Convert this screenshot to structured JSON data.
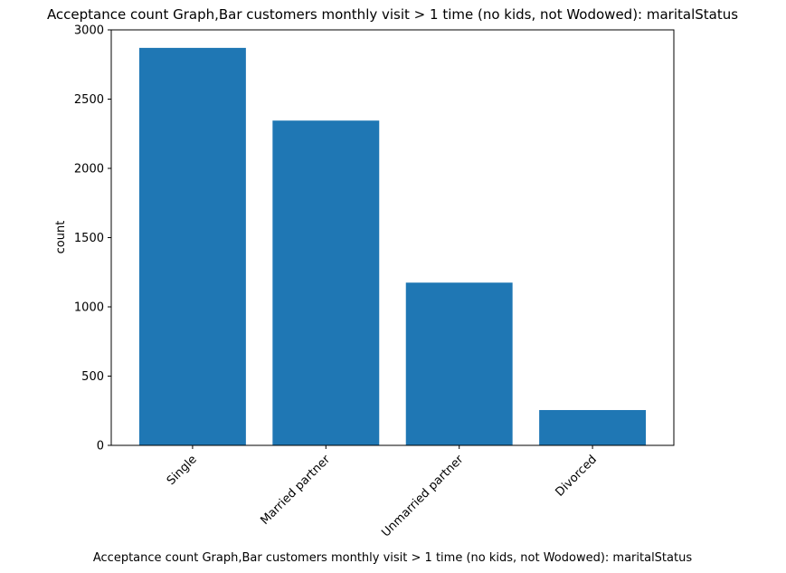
{
  "chart_data": {
    "type": "bar",
    "title": "Acceptance count Graph,Bar customers monthly visit > 1 time (no kids, not Wodowed): maritalStatus",
    "xlabel": "Acceptance count Graph,Bar customers monthly visit > 1 time (no kids, not Wodowed): maritalStatus",
    "ylabel": "count",
    "categories": [
      "Single",
      "Married partner",
      "Unmarried partner",
      "Divorced"
    ],
    "values": [
      2870,
      2345,
      1175,
      255
    ],
    "ylim": [
      0,
      3000
    ],
    "yticks": [
      0,
      500,
      1000,
      1500,
      2000,
      2500,
      3000
    ],
    "bar_color": "#1f77b4",
    "grid": false,
    "legend": "none",
    "xtick_rotation": 45
  }
}
